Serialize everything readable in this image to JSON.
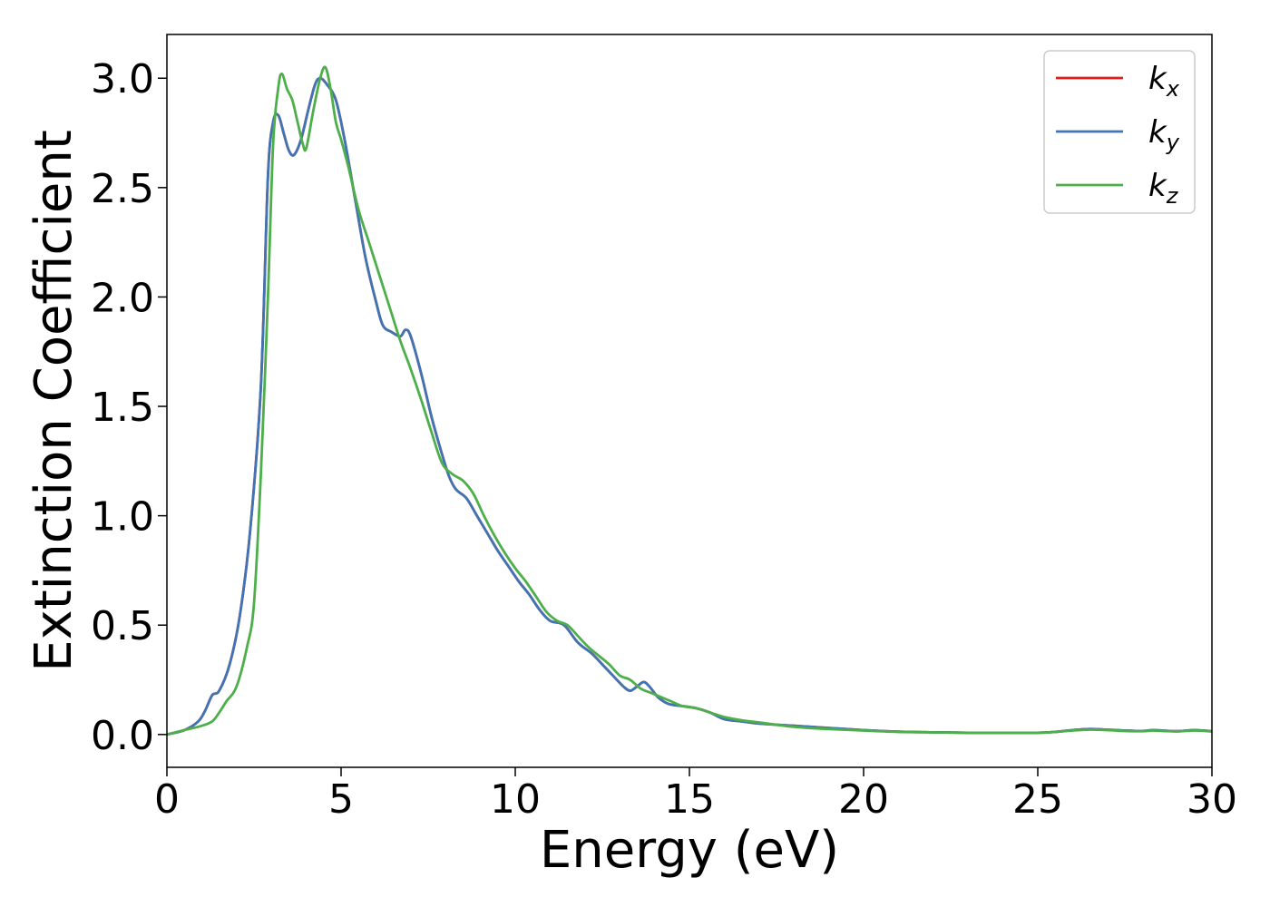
{
  "chart_data": {
    "type": "line",
    "title": "",
    "xlabel": "Energy (eV)",
    "ylabel": "Extinction Coefficient",
    "xlim": [
      0,
      30
    ],
    "ylim": [
      -0.15,
      3.2
    ],
    "xticks": [
      0,
      5,
      10,
      15,
      20,
      25,
      30
    ],
    "yticks": [
      0.0,
      0.5,
      1.0,
      1.5,
      2.0,
      2.5,
      3.0
    ],
    "xtick_labels": [
      "0",
      "5",
      "10",
      "15",
      "20",
      "25",
      "30"
    ],
    "ytick_labels": [
      "0.0",
      "0.5",
      "1.0",
      "1.5",
      "2.0",
      "2.5",
      "3.0"
    ],
    "grid": false,
    "legend_position": "top-right",
    "series": [
      {
        "name": "k",
        "subscript": "x",
        "color": "#e41a1c",
        "x": [
          0,
          0.5,
          0.9,
          1.1,
          1.3,
          1.5,
          1.8,
          2.1,
          2.4,
          2.7,
          2.9,
          3.05,
          3.2,
          3.35,
          3.5,
          3.65,
          3.85,
          4.05,
          4.25,
          4.4,
          4.6,
          4.85,
          5.1,
          5.4,
          5.7,
          6.0,
          6.2,
          6.45,
          6.7,
          6.85,
          7.0,
          7.3,
          7.6,
          7.9,
          8.1,
          8.3,
          8.6,
          8.9,
          9.2,
          9.5,
          9.8,
          10.1,
          10.4,
          10.7,
          11.0,
          11.4,
          11.8,
          12.2,
          12.5,
          12.8,
          13.1,
          13.3,
          13.5,
          13.7,
          13.9,
          14.1,
          14.4,
          14.8,
          15.2,
          15.6,
          16.0,
          16.5,
          17.0,
          18.0,
          19.0,
          20.0,
          21.0,
          22.0,
          23.0,
          24.0,
          25.0,
          25.5,
          26.0,
          26.5,
          27.0,
          27.5,
          28.0,
          28.3,
          28.6,
          29.0,
          29.5,
          30.0
        ],
        "y": [
          0,
          0.02,
          0.06,
          0.11,
          0.18,
          0.2,
          0.32,
          0.55,
          0.95,
          1.6,
          2.55,
          2.8,
          2.83,
          2.75,
          2.67,
          2.65,
          2.72,
          2.85,
          2.97,
          3.0,
          2.97,
          2.9,
          2.72,
          2.45,
          2.18,
          1.98,
          1.87,
          1.84,
          1.82,
          1.85,
          1.82,
          1.65,
          1.45,
          1.28,
          1.18,
          1.12,
          1.08,
          1.0,
          0.92,
          0.84,
          0.77,
          0.7,
          0.64,
          0.57,
          0.52,
          0.5,
          0.42,
          0.37,
          0.32,
          0.27,
          0.22,
          0.2,
          0.22,
          0.24,
          0.21,
          0.17,
          0.14,
          0.13,
          0.12,
          0.1,
          0.07,
          0.06,
          0.05,
          0.04,
          0.03,
          0.02,
          0.013,
          0.01,
          0.008,
          0.008,
          0.008,
          0.012,
          0.02,
          0.025,
          0.022,
          0.018,
          0.016,
          0.02,
          0.018,
          0.015,
          0.02,
          0.015
        ]
      },
      {
        "name": "k",
        "subscript": "y",
        "color": "#3f75b5",
        "x": [
          0,
          0.5,
          0.9,
          1.1,
          1.3,
          1.5,
          1.8,
          2.1,
          2.4,
          2.7,
          2.9,
          3.05,
          3.2,
          3.35,
          3.5,
          3.65,
          3.85,
          4.05,
          4.25,
          4.4,
          4.6,
          4.85,
          5.1,
          5.4,
          5.7,
          6.0,
          6.2,
          6.45,
          6.7,
          6.85,
          7.0,
          7.3,
          7.6,
          7.9,
          8.1,
          8.3,
          8.6,
          8.9,
          9.2,
          9.5,
          9.8,
          10.1,
          10.4,
          10.7,
          11.0,
          11.4,
          11.8,
          12.2,
          12.5,
          12.8,
          13.1,
          13.3,
          13.5,
          13.7,
          13.9,
          14.1,
          14.4,
          14.8,
          15.2,
          15.6,
          16.0,
          16.5,
          17.0,
          18.0,
          19.0,
          20.0,
          21.0,
          22.0,
          23.0,
          24.0,
          25.0,
          25.5,
          26.0,
          26.5,
          27.0,
          27.5,
          28.0,
          28.3,
          28.6,
          29.0,
          29.5,
          30.0
        ],
        "y": [
          0,
          0.02,
          0.06,
          0.11,
          0.18,
          0.2,
          0.32,
          0.55,
          0.95,
          1.6,
          2.55,
          2.8,
          2.83,
          2.75,
          2.67,
          2.65,
          2.72,
          2.85,
          2.97,
          3.0,
          2.97,
          2.9,
          2.72,
          2.45,
          2.18,
          1.98,
          1.87,
          1.84,
          1.82,
          1.85,
          1.82,
          1.65,
          1.45,
          1.28,
          1.18,
          1.12,
          1.08,
          1.0,
          0.92,
          0.84,
          0.77,
          0.7,
          0.64,
          0.57,
          0.52,
          0.5,
          0.42,
          0.37,
          0.32,
          0.27,
          0.22,
          0.2,
          0.22,
          0.24,
          0.21,
          0.17,
          0.14,
          0.13,
          0.12,
          0.1,
          0.07,
          0.06,
          0.05,
          0.04,
          0.03,
          0.02,
          0.013,
          0.01,
          0.008,
          0.008,
          0.008,
          0.012,
          0.02,
          0.025,
          0.022,
          0.018,
          0.016,
          0.02,
          0.018,
          0.015,
          0.02,
          0.015
        ]
      },
      {
        "name": "k",
        "subscript": "z",
        "color": "#4daf4a",
        "x": [
          0,
          0.5,
          1.0,
          1.3,
          1.5,
          1.7,
          2.0,
          2.3,
          2.5,
          2.7,
          2.9,
          3.05,
          3.2,
          3.3,
          3.45,
          3.6,
          3.75,
          3.9,
          4.0,
          4.2,
          4.4,
          4.55,
          4.7,
          4.85,
          5.0,
          5.2,
          5.5,
          5.8,
          6.1,
          6.4,
          6.7,
          7.0,
          7.3,
          7.6,
          7.9,
          8.2,
          8.5,
          8.8,
          9.1,
          9.4,
          9.7,
          10.0,
          10.3,
          10.6,
          10.9,
          11.2,
          11.5,
          11.8,
          12.1,
          12.4,
          12.7,
          13.0,
          13.3,
          13.6,
          13.9,
          14.2,
          14.5,
          14.8,
          15.2,
          15.6,
          16.0,
          16.5,
          17.0,
          18.0,
          19.0,
          20.0,
          21.0,
          22.0,
          23.0,
          24.0,
          25.0,
          25.5,
          26.0,
          26.5,
          27.0,
          27.5,
          28.0,
          28.3,
          28.6,
          29.0,
          29.5,
          30.0
        ],
        "y": [
          0,
          0.02,
          0.04,
          0.06,
          0.1,
          0.15,
          0.22,
          0.4,
          0.6,
          1.2,
          2.0,
          2.7,
          2.96,
          3.02,
          2.95,
          2.9,
          2.8,
          2.7,
          2.68,
          2.85,
          3.0,
          3.05,
          2.95,
          2.8,
          2.72,
          2.6,
          2.4,
          2.25,
          2.1,
          1.95,
          1.8,
          1.67,
          1.53,
          1.38,
          1.24,
          1.19,
          1.16,
          1.1,
          1.0,
          0.91,
          0.83,
          0.76,
          0.7,
          0.63,
          0.56,
          0.52,
          0.5,
          0.45,
          0.4,
          0.36,
          0.32,
          0.27,
          0.25,
          0.21,
          0.19,
          0.17,
          0.15,
          0.13,
          0.12,
          0.1,
          0.08,
          0.065,
          0.055,
          0.035,
          0.025,
          0.018,
          0.012,
          0.01,
          0.008,
          0.008,
          0.008,
          0.012,
          0.018,
          0.022,
          0.02,
          0.016,
          0.015,
          0.018,
          0.016,
          0.014,
          0.018,
          0.014
        ]
      }
    ]
  }
}
